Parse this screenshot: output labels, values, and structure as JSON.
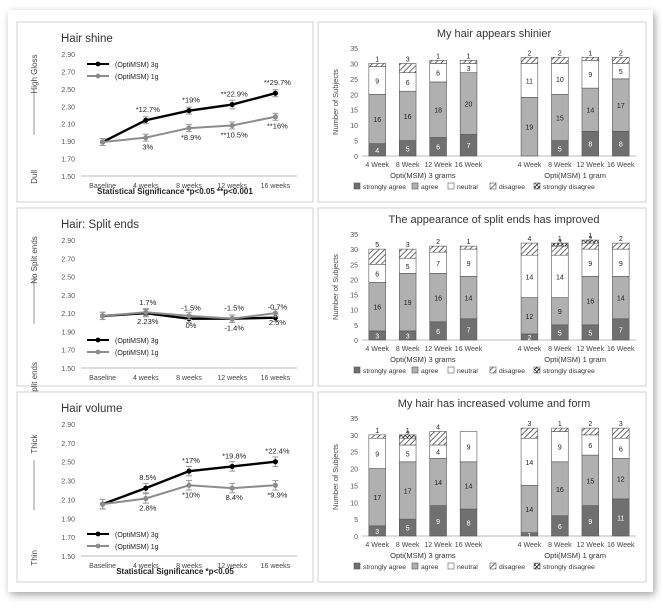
{
  "chart_data": [
    {
      "type": "line",
      "title": "Hair shine",
      "ylabel_top": "High Gloss",
      "ylabel_bottom": "Dull",
      "categories": [
        "Baseline",
        "4 weeks",
        "8 weeks",
        "12 weeks",
        "16 weeks"
      ],
      "ylim": [
        1.5,
        2.9
      ],
      "yticks": [
        "1.50",
        "1.70",
        "1.90",
        "2.10",
        "2.30",
        "2.50",
        "2.70",
        "2.90"
      ],
      "series": [
        {
          "name": "(OptiMSM) 3g",
          "color": "#000000",
          "values": [
            1.89,
            2.14,
            2.25,
            2.32,
            2.45
          ],
          "errors": [
            0.04,
            0.04,
            0.04,
            0.05,
            0.04
          ],
          "labels": [
            "",
            "*12.7%",
            "*19%",
            "**22.9%",
            "**29.7%"
          ]
        },
        {
          "name": "(OptiMSM) 1g",
          "color": "#8c8c8c",
          "values": [
            1.89,
            1.94,
            2.05,
            2.08,
            2.18
          ],
          "errors": [
            0.04,
            0.04,
            0.04,
            0.04,
            0.04
          ],
          "labels": [
            "",
            "3%",
            "*8.9%",
            "**10.5%",
            "**16%"
          ]
        }
      ],
      "footnote": "Statistical Significance *p<0.05   **p<0.001"
    },
    {
      "type": "line",
      "title": "Hair: Split ends",
      "ylabel_top": "No Split ends",
      "ylabel_bottom": "abundant split ends",
      "categories": [
        "Baseline",
        "4 weeks",
        "8 weeks",
        "12 weeks",
        "16 weeks"
      ],
      "ylim": [
        1.5,
        2.9
      ],
      "yticks": [
        "1.50",
        "1.70",
        "1.90",
        "2.10",
        "2.30",
        "2.50",
        "2.70",
        "2.90"
      ],
      "series": [
        {
          "name": "(OptiMSM) 3g",
          "color": "#000000",
          "values": [
            2.07,
            2.1,
            2.04,
            2.04,
            2.05
          ],
          "errors": [
            0.04,
            0.04,
            0.04,
            0.04,
            0.04
          ],
          "labels": [
            "",
            "1.7%",
            "-1.5%",
            "-1.5%",
            "-0.7%"
          ]
        },
        {
          "name": "(OptiMSM) 1g",
          "color": "#8c8c8c",
          "values": [
            2.07,
            2.11,
            2.07,
            2.04,
            2.1
          ],
          "errors": [
            0.04,
            0.04,
            0.04,
            0.04,
            0.04
          ],
          "labels": [
            "",
            "2.23%",
            "0%",
            "-1.4%",
            "2.5%"
          ]
        }
      ],
      "footnote": ""
    },
    {
      "type": "line",
      "title": "Hair volume",
      "ylabel_top": "Thick",
      "ylabel_bottom": "Thin",
      "categories": [
        "Baseline",
        "4 weeks",
        "8 weeks",
        "12 weeks",
        "16 weeks"
      ],
      "ylim": [
        1.5,
        2.9
      ],
      "yticks": [
        "1.50",
        "1.70",
        "1.90",
        "2.10",
        "2.30",
        "2.50",
        "2.70",
        "2.90"
      ],
      "series": [
        {
          "name": "(OptiMSM) 3g",
          "color": "#000000",
          "values": [
            2.05,
            2.22,
            2.4,
            2.45,
            2.5
          ],
          "errors": [
            0.05,
            0.05,
            0.05,
            0.05,
            0.05
          ],
          "labels": [
            "",
            "8.5%",
            "*17%",
            "*19.8%",
            "*22.4%"
          ]
        },
        {
          "name": "(OptiMSM) 1g",
          "color": "#8c8c8c",
          "values": [
            2.05,
            2.11,
            2.25,
            2.22,
            2.25
          ],
          "errors": [
            0.05,
            0.05,
            0.05,
            0.05,
            0.05
          ],
          "labels": [
            "",
            "2.8%",
            "*10%",
            "8.4%",
            "*9.9%"
          ]
        }
      ],
      "footnote": "Statistical Significance *p<0.05"
    },
    {
      "type": "bar",
      "title": "My hair appears shinier",
      "ylabel": "Number of Subjects",
      "ylim": [
        0,
        35
      ],
      "yticks": [
        0,
        5,
        10,
        15,
        20,
        25,
        30,
        35
      ],
      "groups": [
        "Opti(MSM) 3 grams",
        "Opti(MSM) 1 gram"
      ],
      "categories": [
        "4 Week",
        "8 Week",
        "12 Week",
        "16 Week",
        "4 Week",
        "8 Week",
        "12 Week",
        "16 Week"
      ],
      "series_names": [
        "strongly agree",
        "agree",
        "neutral",
        "disagree",
        "strongly disagree"
      ],
      "series": [
        {
          "name": "strongly agree",
          "values": [
            4,
            5,
            6,
            7,
            0,
            5,
            8,
            8
          ]
        },
        {
          "name": "agree",
          "values": [
            16,
            16,
            18,
            20,
            19,
            15,
            14,
            17
          ]
        },
        {
          "name": "neutral",
          "values": [
            9,
            6,
            6,
            3,
            11,
            10,
            9,
            5
          ]
        },
        {
          "name": "disagree",
          "values": [
            1,
            3,
            1,
            1,
            2,
            2,
            1,
            2
          ]
        },
        {
          "name": "strongly disagree",
          "values": [
            0,
            0,
            0,
            0,
            0,
            0,
            0,
            0
          ]
        }
      ]
    },
    {
      "type": "bar",
      "title": "The appearance of split ends has improved",
      "ylabel": "Number of Subjects",
      "ylim": [
        0,
        35
      ],
      "yticks": [
        0,
        5,
        10,
        15,
        20,
        25,
        30,
        35
      ],
      "groups": [
        "Opti(MSM) 3 grams",
        "Opti(MSM) 1 gram"
      ],
      "categories": [
        "4 Week",
        "8 Week",
        "12 Week",
        "16 Week",
        "4 Week",
        "8 Week",
        "12 Week",
        "16 Week"
      ],
      "series_names": [
        "strongly agree",
        "agree",
        "neutral",
        "disagree",
        "strongly disagree"
      ],
      "series": [
        {
          "name": "strongly agree",
          "values": [
            3,
            3,
            6,
            7,
            2,
            5,
            5,
            7
          ]
        },
        {
          "name": "agree",
          "values": [
            16,
            19,
            16,
            14,
            12,
            9,
            16,
            14
          ]
        },
        {
          "name": "neutral",
          "values": [
            6,
            5,
            7,
            9,
            14,
            14,
            9,
            9
          ]
        },
        {
          "name": "disagree",
          "values": [
            5,
            3,
            2,
            1,
            4,
            3,
            2,
            2
          ]
        },
        {
          "name": "strongly disagree",
          "values": [
            0,
            0,
            0,
            0,
            0,
            1,
            1,
            0
          ]
        }
      ]
    },
    {
      "type": "bar",
      "title": "My hair has increased volume and form",
      "ylabel": "Number of Subjects",
      "ylim": [
        0,
        35
      ],
      "yticks": [
        0,
        5,
        10,
        15,
        20,
        25,
        30,
        35
      ],
      "groups": [
        "Opti(MSM) 3 grams",
        "Opti(MSM) 1 gram"
      ],
      "categories": [
        "4 Week",
        "8 Week",
        "12 Week",
        "16 Week",
        "4 Week",
        "8 Week",
        "12 Week",
        "16 Week"
      ],
      "series_names": [
        "strongly agree",
        "agree",
        "neutral",
        "disagree",
        "strongly disagree"
      ],
      "series": [
        {
          "name": "strongly agree",
          "values": [
            3,
            5,
            9,
            8,
            1,
            6,
            9,
            11
          ]
        },
        {
          "name": "agree",
          "values": [
            17,
            17,
            14,
            14,
            14,
            16,
            15,
            12
          ]
        },
        {
          "name": "neutral",
          "values": [
            9,
            5,
            4,
            9,
            14,
            9,
            6,
            6
          ]
        },
        {
          "name": "disagree",
          "values": [
            1,
            2,
            4,
            0,
            3,
            1,
            2,
            3
          ]
        },
        {
          "name": "strongly disagree",
          "values": [
            0,
            1,
            0,
            0,
            0,
            0,
            0,
            0
          ]
        }
      ]
    }
  ],
  "colors": {
    "strongly agree": "#707070",
    "agree": "#b0b0b0",
    "neutral": "#ffffff",
    "disagree": "#d9d9d9",
    "strongly disagree": "#ffffff"
  }
}
